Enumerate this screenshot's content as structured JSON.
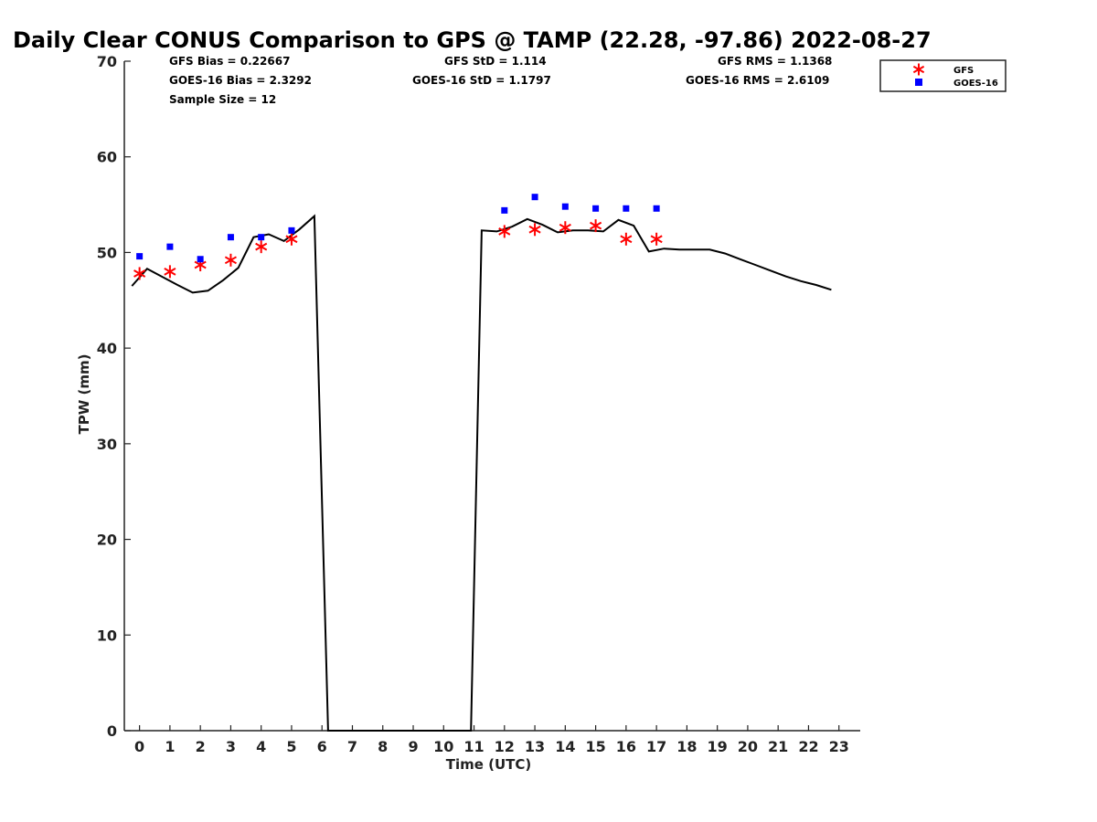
{
  "chart_data": {
    "type": "line",
    "title": "Daily Clear CONUS Comparison to GPS @ TAMP (22.28, -97.86) 2022-08-27",
    "xlabel": "Time (UTC)",
    "ylabel": "TPW (mm)",
    "xlim": [
      -0.5,
      23.7
    ],
    "ylim": [
      0,
      70
    ],
    "x_ticks": [
      0,
      1,
      2,
      3,
      4,
      5,
      6,
      7,
      8,
      9,
      10,
      11,
      12,
      13,
      14,
      15,
      16,
      17,
      18,
      19,
      20,
      21,
      22,
      23
    ],
    "y_ticks": [
      0,
      10,
      20,
      30,
      40,
      50,
      60,
      70
    ],
    "grid": false,
    "legend_position": "top-right",
    "stats": {
      "gfs_bias": "GFS Bias = 0.22667",
      "goes_bias": "GOES-16 Bias = 2.3292",
      "sample_size": "Sample Size = 12",
      "gfs_std": "GFS StD = 1.114",
      "goes_std": "GOES-16 StD = 1.1797",
      "gfs_rms": "GFS RMS = 1.1368",
      "goes_rms": "GOES-16 RMS = 2.6109"
    },
    "series": [
      {
        "name": "GPS",
        "type": "line",
        "color": "#000000",
        "x": [
          -0.25,
          0.25,
          1.25,
          1.75,
          2.25,
          2.75,
          3.25,
          3.75,
          4.25,
          4.75,
          5.25,
          5.75,
          6.2,
          10.9,
          11.25,
          11.75,
          12.25,
          12.75,
          13.25,
          13.75,
          14.25,
          14.75,
          15.25,
          15.75,
          16.25,
          16.75,
          17.25,
          17.75,
          18.75,
          19.25,
          19.75,
          20.25,
          20.75,
          21.25,
          21.75,
          22.25,
          22.75
        ],
        "y": [
          46.5,
          48.3,
          46.6,
          45.8,
          46.0,
          47.1,
          48.4,
          51.6,
          51.9,
          51.2,
          52.4,
          53.8,
          0,
          0,
          52.3,
          52.2,
          52.7,
          53.5,
          52.9,
          52.1,
          52.3,
          52.3,
          52.2,
          53.4,
          52.8,
          50.1,
          50.4,
          50.3,
          50.3,
          49.9,
          49.3,
          48.7,
          48.1,
          47.5,
          47.0,
          46.6,
          46.1
        ]
      },
      {
        "name": "GFS",
        "type": "scatter",
        "marker": "asterisk",
        "color": "#ff0000",
        "x": [
          0,
          1,
          2,
          3,
          4,
          5,
          12,
          13,
          14,
          15,
          16,
          17
        ],
        "y": [
          47.8,
          48.0,
          48.7,
          49.2,
          50.6,
          51.4,
          52.2,
          52.4,
          52.6,
          52.8,
          51.4,
          51.4
        ]
      },
      {
        "name": "GOES-16",
        "type": "scatter",
        "marker": "square",
        "color": "#0000ff",
        "x": [
          0,
          1,
          2,
          3,
          4,
          5,
          12,
          13,
          14,
          15,
          16,
          17
        ],
        "y": [
          49.6,
          50.6,
          49.3,
          51.6,
          51.6,
          52.3,
          54.4,
          55.8,
          54.8,
          54.6,
          54.6,
          54.6
        ]
      }
    ]
  }
}
